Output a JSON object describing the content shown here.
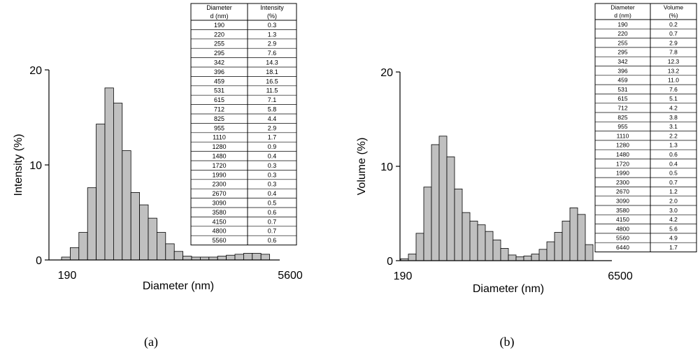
{
  "chart_data": [
    {
      "type": "bar",
      "panel_label": "(a)",
      "xlabel": "Diameter (nm)",
      "ylabel": "Intensity (%)",
      "xtick_labels": [
        "190",
        "5600"
      ],
      "ylim": [
        0,
        20
      ],
      "yticks": [
        0,
        10,
        20
      ],
      "grid": false,
      "categories": [
        "190",
        "220",
        "255",
        "295",
        "342",
        "396",
        "459",
        "531",
        "615",
        "712",
        "825",
        "955",
        "1110",
        "1280",
        "1480",
        "1720",
        "1990",
        "2300",
        "2670",
        "3090",
        "3580",
        "4150",
        "4800",
        "5560"
      ],
      "values": [
        0.3,
        1.3,
        2.9,
        7.6,
        14.3,
        18.1,
        16.5,
        11.5,
        7.1,
        5.8,
        4.4,
        2.9,
        1.7,
        0.9,
        0.4,
        0.3,
        0.3,
        0.3,
        0.4,
        0.5,
        0.6,
        0.7,
        0.7,
        0.6
      ],
      "table": {
        "headers": [
          [
            "Diameter",
            "Intensity"
          ],
          [
            "d (nm)",
            "(%)"
          ]
        ],
        "rows": [
          [
            "190",
            "0.3"
          ],
          [
            "220",
            "1.3"
          ],
          [
            "255",
            "2.9"
          ],
          [
            "295",
            "7.6"
          ],
          [
            "342",
            "14.3"
          ],
          [
            "396",
            "18.1"
          ],
          [
            "459",
            "16.5"
          ],
          [
            "531",
            "11.5"
          ],
          [
            "615",
            "7.1"
          ],
          [
            "712",
            "5.8"
          ],
          [
            "825",
            "4.4"
          ],
          [
            "955",
            "2.9"
          ],
          [
            "1110",
            "1.7"
          ],
          [
            "1280",
            "0.9"
          ],
          [
            "1480",
            "0.4"
          ],
          [
            "1720",
            "0.3"
          ],
          [
            "1990",
            "0.3"
          ],
          [
            "2300",
            "0.3"
          ],
          [
            "2670",
            "0.4"
          ],
          [
            "3090",
            "0.5"
          ],
          [
            "3580",
            "0.6"
          ],
          [
            "4150",
            "0.7"
          ],
          [
            "4800",
            "0.7"
          ],
          [
            "5560",
            "0.6"
          ]
        ]
      },
      "bar_color": "#c0c0c0"
    },
    {
      "type": "bar",
      "panel_label": "(b)",
      "xlabel": "Diameter (nm)",
      "ylabel": "Volume (%)",
      "xtick_labels": [
        "190",
        "6500"
      ],
      "ylim": [
        0,
        20
      ],
      "yticks": [
        0,
        10,
        20
      ],
      "grid": false,
      "categories": [
        "190",
        "220",
        "255",
        "295",
        "342",
        "396",
        "459",
        "531",
        "615",
        "712",
        "825",
        "955",
        "1110",
        "1280",
        "1480",
        "1720",
        "1990",
        "2300",
        "2670",
        "3090",
        "3580",
        "4150",
        "4800",
        "5560",
        "6440"
      ],
      "values": [
        0.2,
        0.7,
        2.9,
        7.8,
        12.3,
        13.2,
        11.0,
        7.6,
        5.1,
        4.2,
        3.8,
        3.1,
        2.2,
        1.3,
        0.6,
        0.4,
        0.5,
        0.7,
        1.2,
        2.0,
        3.0,
        4.2,
        5.6,
        4.9,
        1.7
      ],
      "table": {
        "headers": [
          [
            "Diameter",
            "Volume"
          ],
          [
            "d (nm)",
            "(%)"
          ]
        ],
        "rows": [
          [
            "190",
            "0.2"
          ],
          [
            "220",
            "0.7"
          ],
          [
            "255",
            "2.9"
          ],
          [
            "295",
            "7.8"
          ],
          [
            "342",
            "12.3"
          ],
          [
            "396",
            "13.2"
          ],
          [
            "459",
            "11.0"
          ],
          [
            "531",
            "7.6"
          ],
          [
            "615",
            "5.1"
          ],
          [
            "712",
            "4.2"
          ],
          [
            "825",
            "3.8"
          ],
          [
            "955",
            "3.1"
          ],
          [
            "1110",
            "2.2"
          ],
          [
            "1280",
            "1.3"
          ],
          [
            "1480",
            "0.6"
          ],
          [
            "1720",
            "0.4"
          ],
          [
            "1990",
            "0.5"
          ],
          [
            "2300",
            "0.7"
          ],
          [
            "2670",
            "1.2"
          ],
          [
            "3090",
            "2.0"
          ],
          [
            "3580",
            "3.0"
          ],
          [
            "4150",
            "4.2"
          ],
          [
            "4800",
            "5.6"
          ],
          [
            "5560",
            "4.9"
          ],
          [
            "6440",
            "1.7"
          ]
        ]
      },
      "bar_color": "#c0c0c0"
    }
  ]
}
